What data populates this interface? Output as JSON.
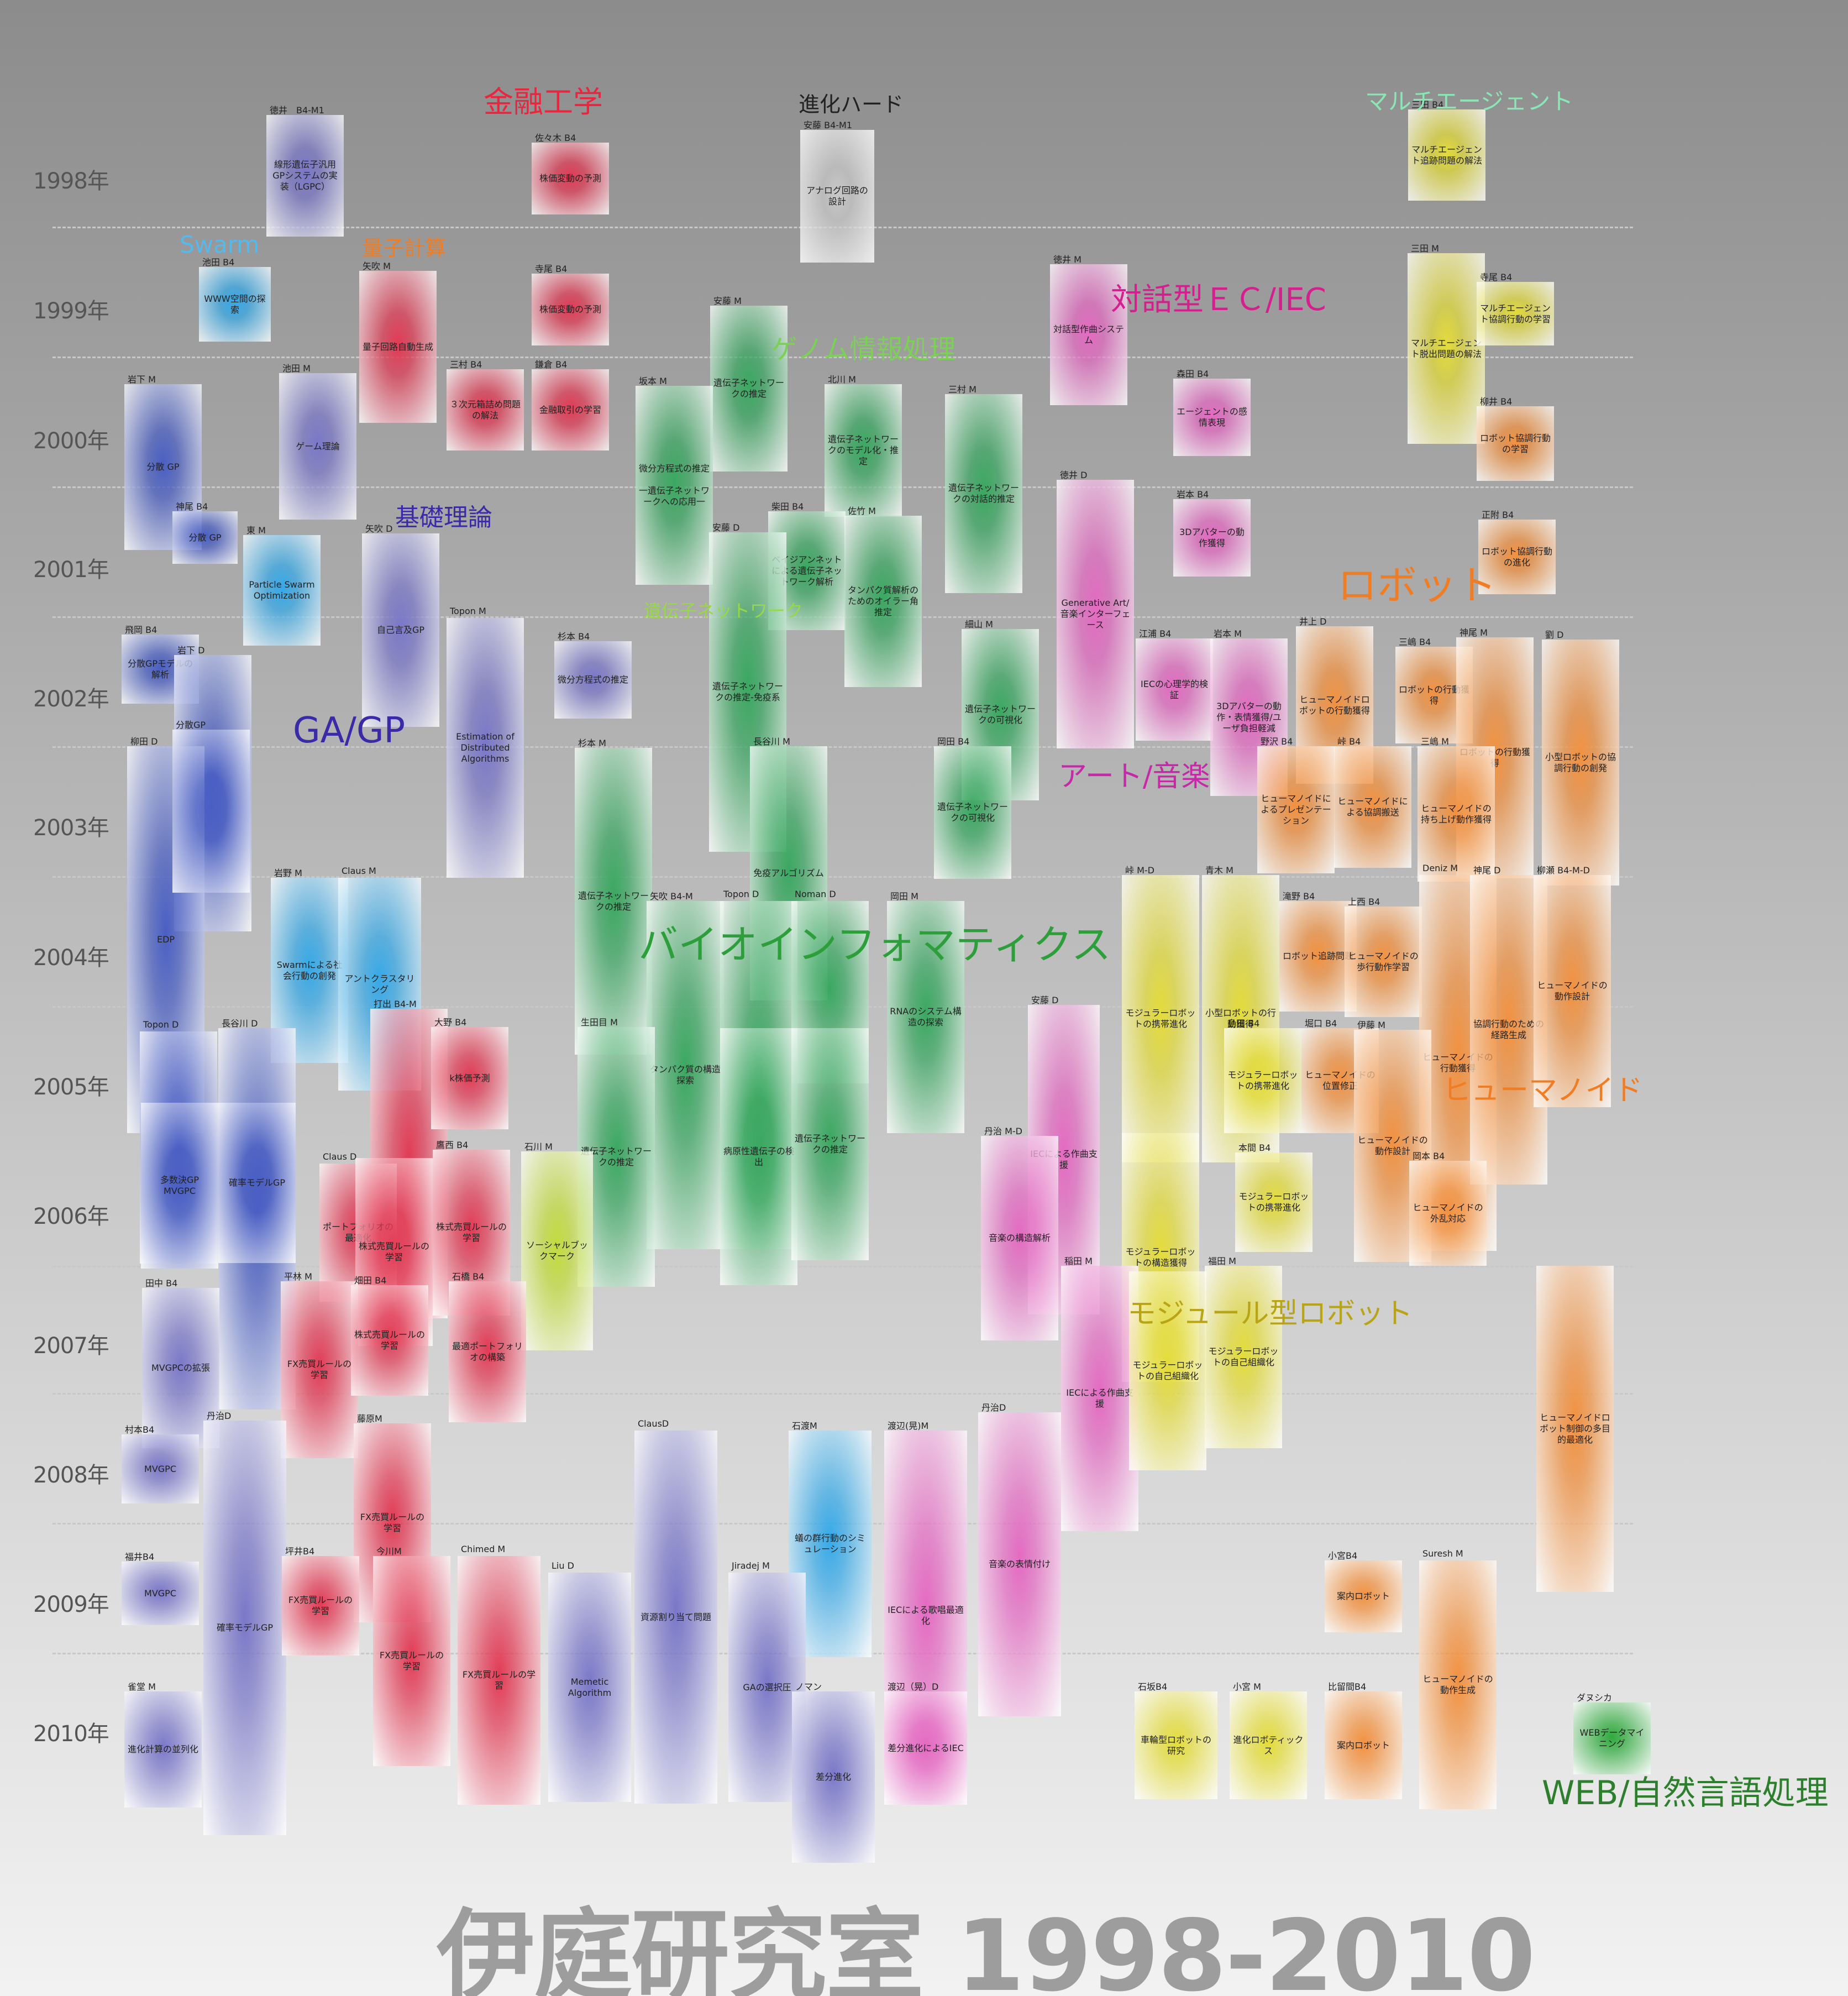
{
  "footer": {
    "title": "伊庭研究室 1998-2010"
  },
  "colors": {
    "blue": "#4a5fc4",
    "lav": "#7a78c8",
    "cyan": "#36a9e8",
    "red": "#e23b55",
    "green": "#3aa861",
    "pink": "#e46ac2",
    "orange": "#f29140",
    "yellow": "#e4dc3a",
    "lime": "#c2dc3c",
    "gray": "#c8c8c8",
    "dgreen": "#2faa3d"
  },
  "years": [
    "1998年",
    "1999年",
    "2000年",
    "2001年",
    "2002年",
    "2003年",
    "2004年",
    "2005年",
    "2006年",
    "2007年",
    "2008年",
    "2009年",
    "2010年"
  ],
  "categories": [
    {
      "label": "金融工学",
      "color": "#e7263f",
      "size": 54
    },
    {
      "label": "進化ハード",
      "color": "#222222",
      "size": 38
    },
    {
      "label": "マルチエージェント",
      "color": "#8be6b5",
      "size": 42
    },
    {
      "label": "Swarm",
      "color": "#56b9ec",
      "size": 42
    },
    {
      "label": "量子計算",
      "color": "#f07d23",
      "size": 38
    },
    {
      "label": "対話型ＥＣ/IEC",
      "color": "#d4208f",
      "size": 56
    },
    {
      "label": "ゲノム情報処理",
      "color": "#7bd055",
      "size": 48
    },
    {
      "label": "基礎理論",
      "color": "#3a2aa8",
      "size": 44
    },
    {
      "label": "ロボット",
      "color": "#f07d23",
      "size": 72
    },
    {
      "label": "遺伝子ネットワーク",
      "color": "#98d848",
      "size": 32
    },
    {
      "label": "GA/GP",
      "color": "#3a2aa8",
      "size": 64
    },
    {
      "label": "アート/音楽",
      "color": "#c629a8",
      "size": 52
    },
    {
      "label": "バイオインフォマティクス",
      "color": "#2d9f3a",
      "size": 72
    },
    {
      "label": "ヒューマノイド",
      "color": "#f07d23",
      "size": 52
    },
    {
      "label": "モジュール型ロボット",
      "color": "#b8a414",
      "size": 52
    },
    {
      "label": "WEB/自然言語処理",
      "color": "#2d7f2d",
      "size": 60
    }
  ],
  "cards": [
    {
      "author": "徳井　B4-M1",
      "text": "線形遺伝子汎用GPシステムの実装（LGPC）",
      "color": "lav"
    },
    {
      "author": "佐々木 B4",
      "text": "株価変動の予測",
      "color": "red"
    },
    {
      "author": "安藤 B4-M1",
      "text": "アナログ回路の設計",
      "color": "gray"
    },
    {
      "author": "三田 B4",
      "text": "マルチエージェント追跡問題の解法",
      "color": "yellow"
    },
    {
      "author": "池田 B4",
      "text": "WWW空間の探索",
      "color": "cyan"
    },
    {
      "author": "矢吹 M",
      "text": "量子回路自動生成",
      "color": "red"
    },
    {
      "author": "寺尾 B4",
      "text": "株価変動の予測",
      "color": "red"
    },
    {
      "author": "徳井 M",
      "text": "対話型作曲システム",
      "color": "pink"
    },
    {
      "author": "三田 M",
      "text": "マルチエージェント脱出問題の解法",
      "color": "yellow"
    },
    {
      "author": "寺尾 B4",
      "text": "マルチエージェント協調行動の学習",
      "color": "yellow"
    },
    {
      "author": "岩下 M",
      "text": "分散 GP",
      "color": "blue"
    },
    {
      "author": "池田 M",
      "text": "ゲーム理論",
      "color": "lav"
    },
    {
      "author": "三村 B4",
      "text": "３次元箱詰め問題の解法",
      "color": "red"
    },
    {
      "author": "鎌倉 B4",
      "text": "金融取引の学習",
      "color": "red"
    },
    {
      "author": "安藤 M",
      "text": "遺伝子ネットワークの推定",
      "color": "green"
    },
    {
      "author": "坂本 M",
      "text": "微分方程式の推定\n\n一遺伝子ネットワークへの応用一",
      "color": "green"
    },
    {
      "author": "北川 M",
      "text": "遺伝子ネットワークのモデル化・推定",
      "color": "green"
    },
    {
      "author": "三村 M",
      "text": "遺伝子ネットワークの対話的推定",
      "color": "green"
    },
    {
      "author": "森田 B4",
      "text": "エージェントの感情表現",
      "color": "pink"
    },
    {
      "author": "柳井 B4",
      "text": "ロボット協調行動の学習",
      "color": "orange"
    },
    {
      "author": "神尾 B4",
      "text": "分散 GP",
      "color": "blue"
    },
    {
      "author": "東 M",
      "text": "Particle Swarm Optimization",
      "color": "cyan"
    },
    {
      "author": "矢吹 D",
      "text": "自己言及GP",
      "color": "lav"
    },
    {
      "author": "柴田 B4",
      "text": "ベイジアンネットによる遺伝子ネットワーク解析",
      "color": "green"
    },
    {
      "author": "安藤 D",
      "text": "遺伝子ネットワークの推定-免疫系",
      "color": "green"
    },
    {
      "author": "佐竹 M",
      "text": "タンパク質解析のためのオイラー角推定",
      "color": "green"
    },
    {
      "author": "徳井 D",
      "text": "Generative Art/音楽インターフェース",
      "color": "pink"
    },
    {
      "author": "岩本 B4",
      "text": "3Dアバターの動作獲得",
      "color": "pink"
    },
    {
      "author": "正附 B4",
      "text": "ロボット協調行動の進化",
      "color": "orange"
    },
    {
      "author": "飛岡 B4",
      "text": "分散GPモデルの解析",
      "color": "blue"
    },
    {
      "author": "岩下 D",
      "text": "",
      "color": "blue"
    },
    {
      "author": "Topon M",
      "text": "Estimation of Distributed Algorithms",
      "color": "lav"
    },
    {
      "author": "杉本 B4",
      "text": "微分方程式の推定",
      "color": "lav"
    },
    {
      "author": "細山 M",
      "text": "遺伝子ネットワークの可視化",
      "color": "green"
    },
    {
      "author": "江浦 B4",
      "text": "IECの心理学的検証",
      "color": "pink"
    },
    {
      "author": "岩本 M",
      "text": "3Dアバターの動作・表情獲得/ユーザ負担軽減",
      "color": "pink"
    },
    {
      "author": "井上 D",
      "text": "ヒューマノイドロボットの行動獲得",
      "color": "orange"
    },
    {
      "author": "三嶋 B4",
      "text": "ロボットの行動獲得",
      "color": "orange"
    },
    {
      "author": "神尾 M",
      "text": "ロボットの行動獲得",
      "color": "orange"
    },
    {
      "author": "劉 D",
      "text": "小型ロボットの協調行動の創発",
      "color": "orange"
    },
    {
      "author": "柳田 D",
      "text": "EDP",
      "color": "blue"
    },
    {
      "author": "分散GP",
      "text": "",
      "color": "blue"
    },
    {
      "author": "杉本 M",
      "text": "遺伝子ネットワークの推定",
      "color": "green"
    },
    {
      "author": "長谷川 M",
      "text": "免疫アルゴリズム",
      "color": "green"
    },
    {
      "author": "岡田 B4",
      "text": "遺伝子ネットワークの可視化",
      "color": "green"
    },
    {
      "author": "野沢 B4",
      "text": "ヒューマノイドによるプレゼンテーション",
      "color": "orange"
    },
    {
      "author": "峠 B4",
      "text": "ヒューマノイドによる協調搬送",
      "color": "orange"
    },
    {
      "author": "三嶋 M",
      "text": "ヒューマノイドの持ち上げ動作獲得",
      "color": "orange"
    },
    {
      "author": "岩野 M",
      "text": "Swarmによる社会行動の創発",
      "color": "cyan"
    },
    {
      "author": "Claus M",
      "text": "アントクラスタリング",
      "color": "cyan"
    },
    {
      "author": "矢吹 B4-M",
      "text": "タンパク質の構造探索",
      "color": "green"
    },
    {
      "author": "Topon D",
      "text": "",
      "color": "green"
    },
    {
      "author": "Noman D",
      "text": "",
      "color": "green"
    },
    {
      "author": "岡田 M",
      "text": "RNAのシステム構造の探索",
      "color": "green"
    },
    {
      "author": "峠 M-D",
      "text": "モジュラーロボットの携帯進化",
      "color": "yellow"
    },
    {
      "author": "青木 M",
      "text": "小型ロボットの行動獲得",
      "color": "yellow"
    },
    {
      "author": "滝野 B4",
      "text": "ロボット追跡問題",
      "color": "orange"
    },
    {
      "author": "上西 B4",
      "text": "ヒューマノイドの歩行動作学習",
      "color": "orange"
    },
    {
      "author": "Deniz M",
      "text": "ヒューマノイドの行動獲得",
      "color": "orange"
    },
    {
      "author": "神尾 D",
      "text": "協調行動のための経路生成",
      "color": "orange"
    },
    {
      "author": "柳瀬 B4-M-D",
      "text": "ヒューマノイドの動作設計",
      "color": "orange"
    },
    {
      "author": "Topon D",
      "text": "",
      "color": "blue"
    },
    {
      "author": "長谷川 D",
      "text": "",
      "color": "blue"
    },
    {
      "author": "打出 B4-M",
      "text": "",
      "color": "red"
    },
    {
      "author": "大野 B4",
      "text": "k株価予測",
      "color": "red"
    },
    {
      "author": "生田目 M",
      "text": "遺伝子ネットワークの推定",
      "color": "green"
    },
    {
      "author": "",
      "text": "病原性遺伝子の検出",
      "color": "green"
    },
    {
      "author": "",
      "text": "遺伝子ネットワークの推定",
      "color": "green"
    },
    {
      "author": "安藤 D",
      "text": "IECによる作曲支援",
      "color": "pink"
    },
    {
      "author": "島田 B4",
      "text": "モジュラーロボットの携帯進化",
      "color": "yellow"
    },
    {
      "author": "堀口 B4",
      "text": "ヒューマノイドの位置修正",
      "color": "orange"
    },
    {
      "author": "伊藤 M",
      "text": "ヒューマノイドの動作設計",
      "color": "orange"
    },
    {
      "author": "",
      "text": "多数決GP\nMVGPC",
      "color": "blue"
    },
    {
      "author": "",
      "text": "確率モデルGP",
      "color": "blue"
    },
    {
      "author": "Claus D",
      "text": "ポートフォリオの最適化",
      "color": "red"
    },
    {
      "author": "",
      "text": "株式売買ルールの学習",
      "color": "red"
    },
    {
      "author": "鷹西 B4",
      "text": "株式売買ルールの学習",
      "color": "red"
    },
    {
      "author": "石川 M",
      "text": "ソーシャルブックマーク",
      "color": "lime"
    },
    {
      "author": "丹治 M-D",
      "text": "音楽の構造解析",
      "color": "pink"
    },
    {
      "author": "",
      "text": "モジュラーロボットの構造獲得",
      "color": "yellow"
    },
    {
      "author": "本間 B4",
      "text": "モジュラーロボットの携帯進化",
      "color": "yellow"
    },
    {
      "author": "岡本 B4",
      "text": "ヒューマノイドの外乱対応",
      "color": "orange"
    },
    {
      "author": "田中 B4",
      "text": "MVGPCの拡張",
      "color": "lav"
    },
    {
      "author": "平林 M",
      "text": "FX売買ルールの学習",
      "color": "red"
    },
    {
      "author": "畑田 B4",
      "text": "株式売買ルールの学習",
      "color": "red"
    },
    {
      "author": "石橋 B4",
      "text": "最適ポートフォリオの構築",
      "color": "red"
    },
    {
      "author": "稲田 M",
      "text": "IECによる作曲支援",
      "color": "pink"
    },
    {
      "author": "福田 M",
      "text": "モジュラーロボットの自己組織化",
      "color": "yellow"
    },
    {
      "author": "",
      "text": "モジュラーロボットの自己組織化",
      "color": "yellow"
    },
    {
      "author": "",
      "text": "ヒューマノイドロボット制御の多目的最適化",
      "color": "orange"
    },
    {
      "author": "村本B4",
      "text": "MVGPC",
      "color": "lav"
    },
    {
      "author": "丹治D",
      "text": "確率モデルGP",
      "color": "lav"
    },
    {
      "author": "藤原M",
      "text": "FX売買ルールの学習",
      "color": "red"
    },
    {
      "author": "ClausD",
      "text": "資源割り当て問題",
      "color": "lav"
    },
    {
      "author": "石渡M",
      "text": "蟻の群行動のシミュレーション",
      "color": "cyan"
    },
    {
      "author": "渡辺(晃)M",
      "text": "IECによる歌唱最適化",
      "color": "pink"
    },
    {
      "author": "丹治D",
      "text": "音楽の表情付け",
      "color": "pink"
    },
    {
      "author": "福井B4",
      "text": "MVGPC",
      "color": "lav"
    },
    {
      "author": "坪井B4",
      "text": "FX売買ルールの学習",
      "color": "red"
    },
    {
      "author": "今川M",
      "text": "FX売買ルールの学習",
      "color": "red"
    },
    {
      "author": "Chimed M",
      "text": "FX売買ルールの学習",
      "color": "red"
    },
    {
      "author": "Liu D",
      "text": "Memetic Algorithm",
      "color": "lav"
    },
    {
      "author": "Jiradej M",
      "text": "GAの選択圧",
      "color": "lav"
    },
    {
      "author": "小宮B4",
      "text": "案内ロボット",
      "color": "orange"
    },
    {
      "author": "Suresh M",
      "text": "ヒューマノイドの動作生成",
      "color": "orange"
    },
    {
      "author": "雀堂 M",
      "text": "進化計算の並列化",
      "color": "lav"
    },
    {
      "author": "ノマン",
      "text": "差分進化",
      "color": "lav"
    },
    {
      "author": "渡辺（晃）D",
      "text": "差分進化によるIEC",
      "color": "pink"
    },
    {
      "author": "石坂B4",
      "text": "車輪型ロボットの研究",
      "color": "yellow"
    },
    {
      "author": "小宮 M",
      "text": "進化ロボティックス",
      "color": "yellow"
    },
    {
      "author": "比留間B4",
      "text": "案内ロボット",
      "color": "orange"
    },
    {
      "author": "ダヌシカ",
      "text": "WEBデータマイニング",
      "color": "dgreen"
    }
  ]
}
